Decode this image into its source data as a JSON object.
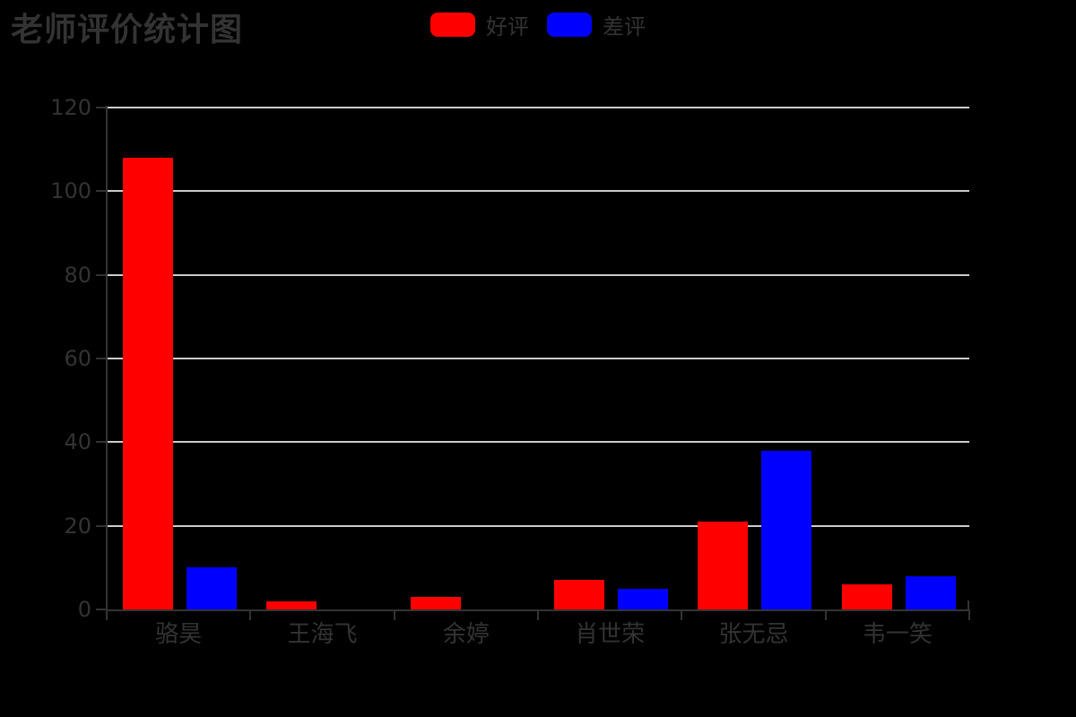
{
  "chart_data": {
    "type": "bar",
    "title": "老师评价统计图",
    "xlabel": "",
    "ylabel": "",
    "categories": [
      "骆昊",
      "王海飞",
      "余婷",
      "肖世荣",
      "张无忌",
      "韦一笑"
    ],
    "series": [
      {
        "name": "好评",
        "color": "#ff0000",
        "values": [
          108,
          2,
          3,
          7,
          21,
          6
        ]
      },
      {
        "name": "差评",
        "color": "#0000ff",
        "values": [
          10,
          0,
          0,
          5,
          38,
          8
        ]
      }
    ],
    "ylim": [
      0,
      120
    ],
    "yticks": [
      0,
      20,
      40,
      60,
      80,
      100,
      120
    ],
    "grid": true,
    "legend_position": "top-center",
    "background_color": "#000000",
    "axis_color": "#333333",
    "grid_color": "#cccccc",
    "text_color": "#333333"
  }
}
